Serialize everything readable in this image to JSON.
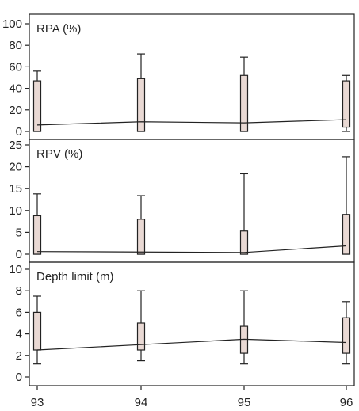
{
  "chart_data": {
    "type": "box",
    "x": [
      "93",
      "94",
      "95",
      "96"
    ],
    "panels": [
      {
        "title": "RPA (%)",
        "ylim": [
          0,
          100
        ],
        "yticks": [
          0,
          20,
          40,
          60,
          80,
          100
        ],
        "median_line": [
          6,
          9,
          8,
          11
        ],
        "boxes": [
          {
            "x": "93",
            "whisker_low": 0,
            "q1": 0,
            "q3": 47,
            "whisker_high": 56
          },
          {
            "x": "94",
            "whisker_low": 0,
            "q1": 0,
            "q3": 49,
            "whisker_high": 72
          },
          {
            "x": "95",
            "whisker_low": 0,
            "q1": 0,
            "q3": 52,
            "whisker_high": 69
          },
          {
            "x": "96",
            "whisker_low": 0,
            "q1": 4,
            "q3": 47,
            "whisker_high": 52
          }
        ]
      },
      {
        "title": "RPV (%)",
        "ylim": [
          0,
          25
        ],
        "yticks": [
          0,
          5,
          10,
          15,
          20,
          25
        ],
        "median_line": [
          0.6,
          0.5,
          0.4,
          1.9
        ],
        "boxes": [
          {
            "x": "93",
            "whisker_low": 0,
            "q1": 0,
            "q3": 8.8,
            "whisker_high": 13.8
          },
          {
            "x": "94",
            "whisker_low": 0,
            "q1": 0,
            "q3": 8.0,
            "whisker_high": 13.4
          },
          {
            "x": "95",
            "whisker_low": 0,
            "q1": 0,
            "q3": 5.3,
            "whisker_high": 18.4
          },
          {
            "x": "96",
            "whisker_low": 0,
            "q1": 0,
            "q3": 9.1,
            "whisker_high": 22.3
          }
        ]
      },
      {
        "title": "Depth limit (m)",
        "ylim": [
          -0.5,
          10
        ],
        "yticks": [
          0,
          2,
          4,
          6,
          8,
          10
        ],
        "median_line": [
          2.5,
          3.0,
          3.5,
          3.2
        ],
        "boxes": [
          {
            "x": "93",
            "whisker_low": 1.2,
            "q1": 2.5,
            "q3": 6.0,
            "whisker_high": 7.5
          },
          {
            "x": "94",
            "whisker_low": 1.5,
            "q1": 2.5,
            "q3": 5.0,
            "whisker_high": 8.0
          },
          {
            "x": "95",
            "whisker_low": 1.2,
            "q1": 2.2,
            "q3": 4.7,
            "whisker_high": 8.0
          },
          {
            "x": "96",
            "whisker_low": 1.2,
            "q1": 2.2,
            "q3": 5.5,
            "whisker_high": 7.0
          }
        ]
      }
    ]
  },
  "colors": {
    "box_fill": "#e9d9d4",
    "axis": "#222222"
  }
}
